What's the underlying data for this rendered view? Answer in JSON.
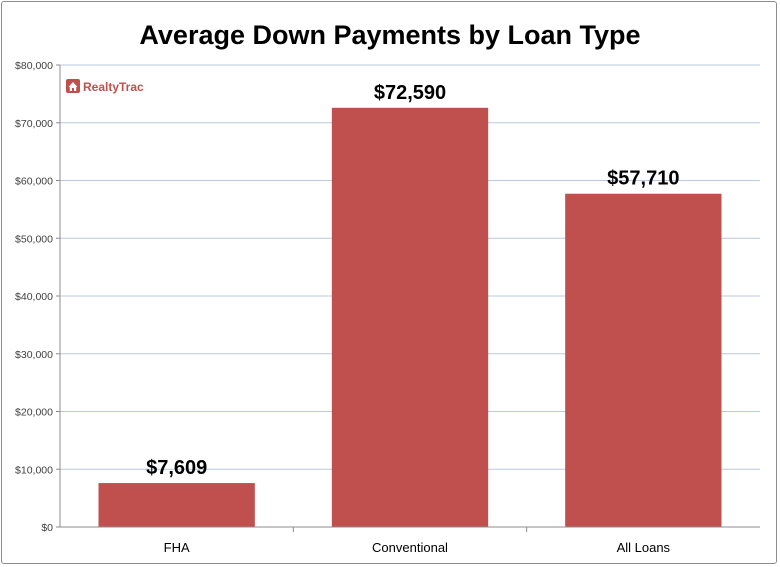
{
  "logo": {
    "text": "RealtyTrac",
    "icon": "house-logo-icon"
  },
  "colors": {
    "bar": "#c0504d",
    "grid": "#b9c9e0",
    "axis": "#8c8c8c",
    "logo": "#c0504d"
  },
  "chart_data": {
    "type": "bar",
    "title": "Average Down Payments by Loan Type",
    "xlabel": "",
    "ylabel": "",
    "categories": [
      "FHA",
      "Conventional",
      "All Loans"
    ],
    "values": [
      7609,
      72590,
      57710
    ],
    "data_labels": [
      "$7,609",
      "$72,590",
      "$57,710"
    ],
    "ylim": [
      0,
      80000
    ],
    "yticks": [
      0,
      10000,
      20000,
      30000,
      40000,
      50000,
      60000,
      70000,
      80000
    ],
    "ytick_labels": [
      "$0",
      "$10,000",
      "$20,000",
      "$30,000",
      "$40,000",
      "$50,000",
      "$60,000",
      "$70,000",
      "$80,000"
    ],
    "grid": true,
    "legend": "none"
  }
}
